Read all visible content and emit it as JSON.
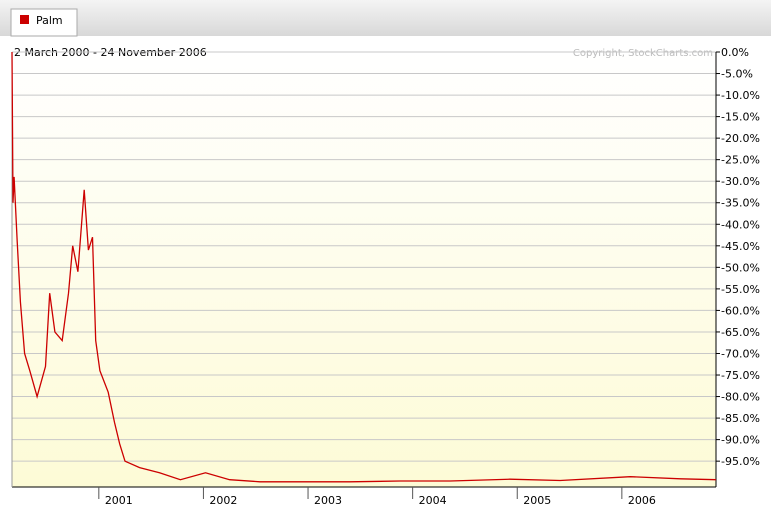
{
  "chart_data": {
    "type": "line",
    "subtitle": "2 March 2000 - 24 November 2006",
    "annotation": "Copyright, StockCharts.com",
    "series": [
      {
        "name": "Palm",
        "color": "#cc0000",
        "x": [
          2000.17,
          2000.18,
          2000.19,
          2000.22,
          2000.25,
          2000.29,
          2000.34,
          2000.41,
          2000.49,
          2000.53,
          2000.58,
          2000.65,
          2000.71,
          2000.75,
          2000.8,
          2000.86,
          2000.9,
          2000.94,
          2000.97,
          2001.01,
          2001.09,
          2001.15,
          2001.2,
          2001.25,
          2001.39,
          2001.58,
          2001.78,
          2002.02,
          2002.25,
          2002.54,
          2002.92,
          2003.4,
          2003.88,
          2004.36,
          2004.93,
          2005.41,
          2006.08,
          2006.56,
          2006.9
        ],
        "values": [
          0,
          -35,
          -29,
          -44,
          -58,
          -70,
          -74,
          -80,
          -73,
          -56,
          -65,
          -67,
          -56,
          -45,
          -51,
          -32,
          -46,
          -43,
          -67,
          -74,
          -79,
          -86,
          -91,
          -95,
          -96.5,
          -97.7,
          -99.3,
          -97.7,
          -99.3,
          -99.8,
          -99.8,
          -99.8,
          -99.6,
          -99.6,
          -99.2,
          -99.5,
          -98.6,
          -99.1,
          -99.3
        ]
      }
    ],
    "xlim": [
      2000.17,
      2006.9
    ],
    "xticks": [
      2001,
      2002,
      2003,
      2004,
      2005,
      2006
    ],
    "ylim": [
      -101,
      0
    ],
    "yticks": [
      {
        "value": 0,
        "label": "0.0%"
      },
      {
        "value": -5,
        "label": "-5.0%"
      },
      {
        "value": -10,
        "label": "-10.0%"
      },
      {
        "value": -15,
        "label": "-15.0%"
      },
      {
        "value": -20,
        "label": "-20.0%"
      },
      {
        "value": -25,
        "label": "-25.0%"
      },
      {
        "value": -30,
        "label": "-30.0%"
      },
      {
        "value": -35,
        "label": "-35.0%"
      },
      {
        "value": -40,
        "label": "-40.0%"
      },
      {
        "value": -45,
        "label": "-45.0%"
      },
      {
        "value": -50,
        "label": "-50.0%"
      },
      {
        "value": -55,
        "label": "-55.0%"
      },
      {
        "value": -60,
        "label": "-60.0%"
      },
      {
        "value": -65,
        "label": "-65.0%"
      },
      {
        "value": -70,
        "label": "-70.0%"
      },
      {
        "value": -75,
        "label": "-75.0%"
      },
      {
        "value": -80,
        "label": "-80.0%"
      },
      {
        "value": -85,
        "label": "-85.0%"
      },
      {
        "value": -90,
        "label": "-90.0%"
      },
      {
        "value": -95,
        "label": "-95.0%"
      }
    ],
    "grid": true
  }
}
